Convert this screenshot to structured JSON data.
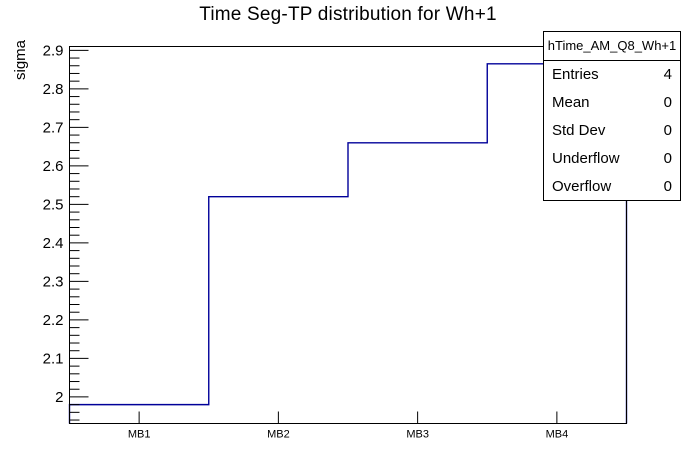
{
  "chart_data": {
    "type": "step-histogram",
    "title": "Time Seg-TP distribution for Wh+1",
    "xlabel": "",
    "ylabel": "sigma",
    "categories": [
      "MB1",
      "MB2",
      "MB3",
      "MB4"
    ],
    "values": [
      1.98,
      2.52,
      2.66,
      2.865
    ],
    "ylim": [
      1.931,
      2.91
    ],
    "yticks": [
      2,
      2.1,
      2.2,
      2.3,
      2.4,
      2.5,
      2.6,
      2.7,
      2.8,
      2.9
    ],
    "ytick_minor_step": 0.02,
    "minor_per_major": 5,
    "grid": false,
    "legend": false,
    "line_color": "#000099",
    "frame_color": "#000000",
    "background_color": "#ffffff"
  },
  "stats_box": {
    "title": "hTime_AM_Q8_Wh+1",
    "rows": [
      {
        "label": "Entries",
        "value": "4"
      },
      {
        "label": "Mean",
        "value": "0"
      },
      {
        "label": "Std Dev",
        "value": "0"
      },
      {
        "label": "Underflow",
        "value": "0"
      },
      {
        "label": "Overflow",
        "value": "0"
      }
    ]
  }
}
